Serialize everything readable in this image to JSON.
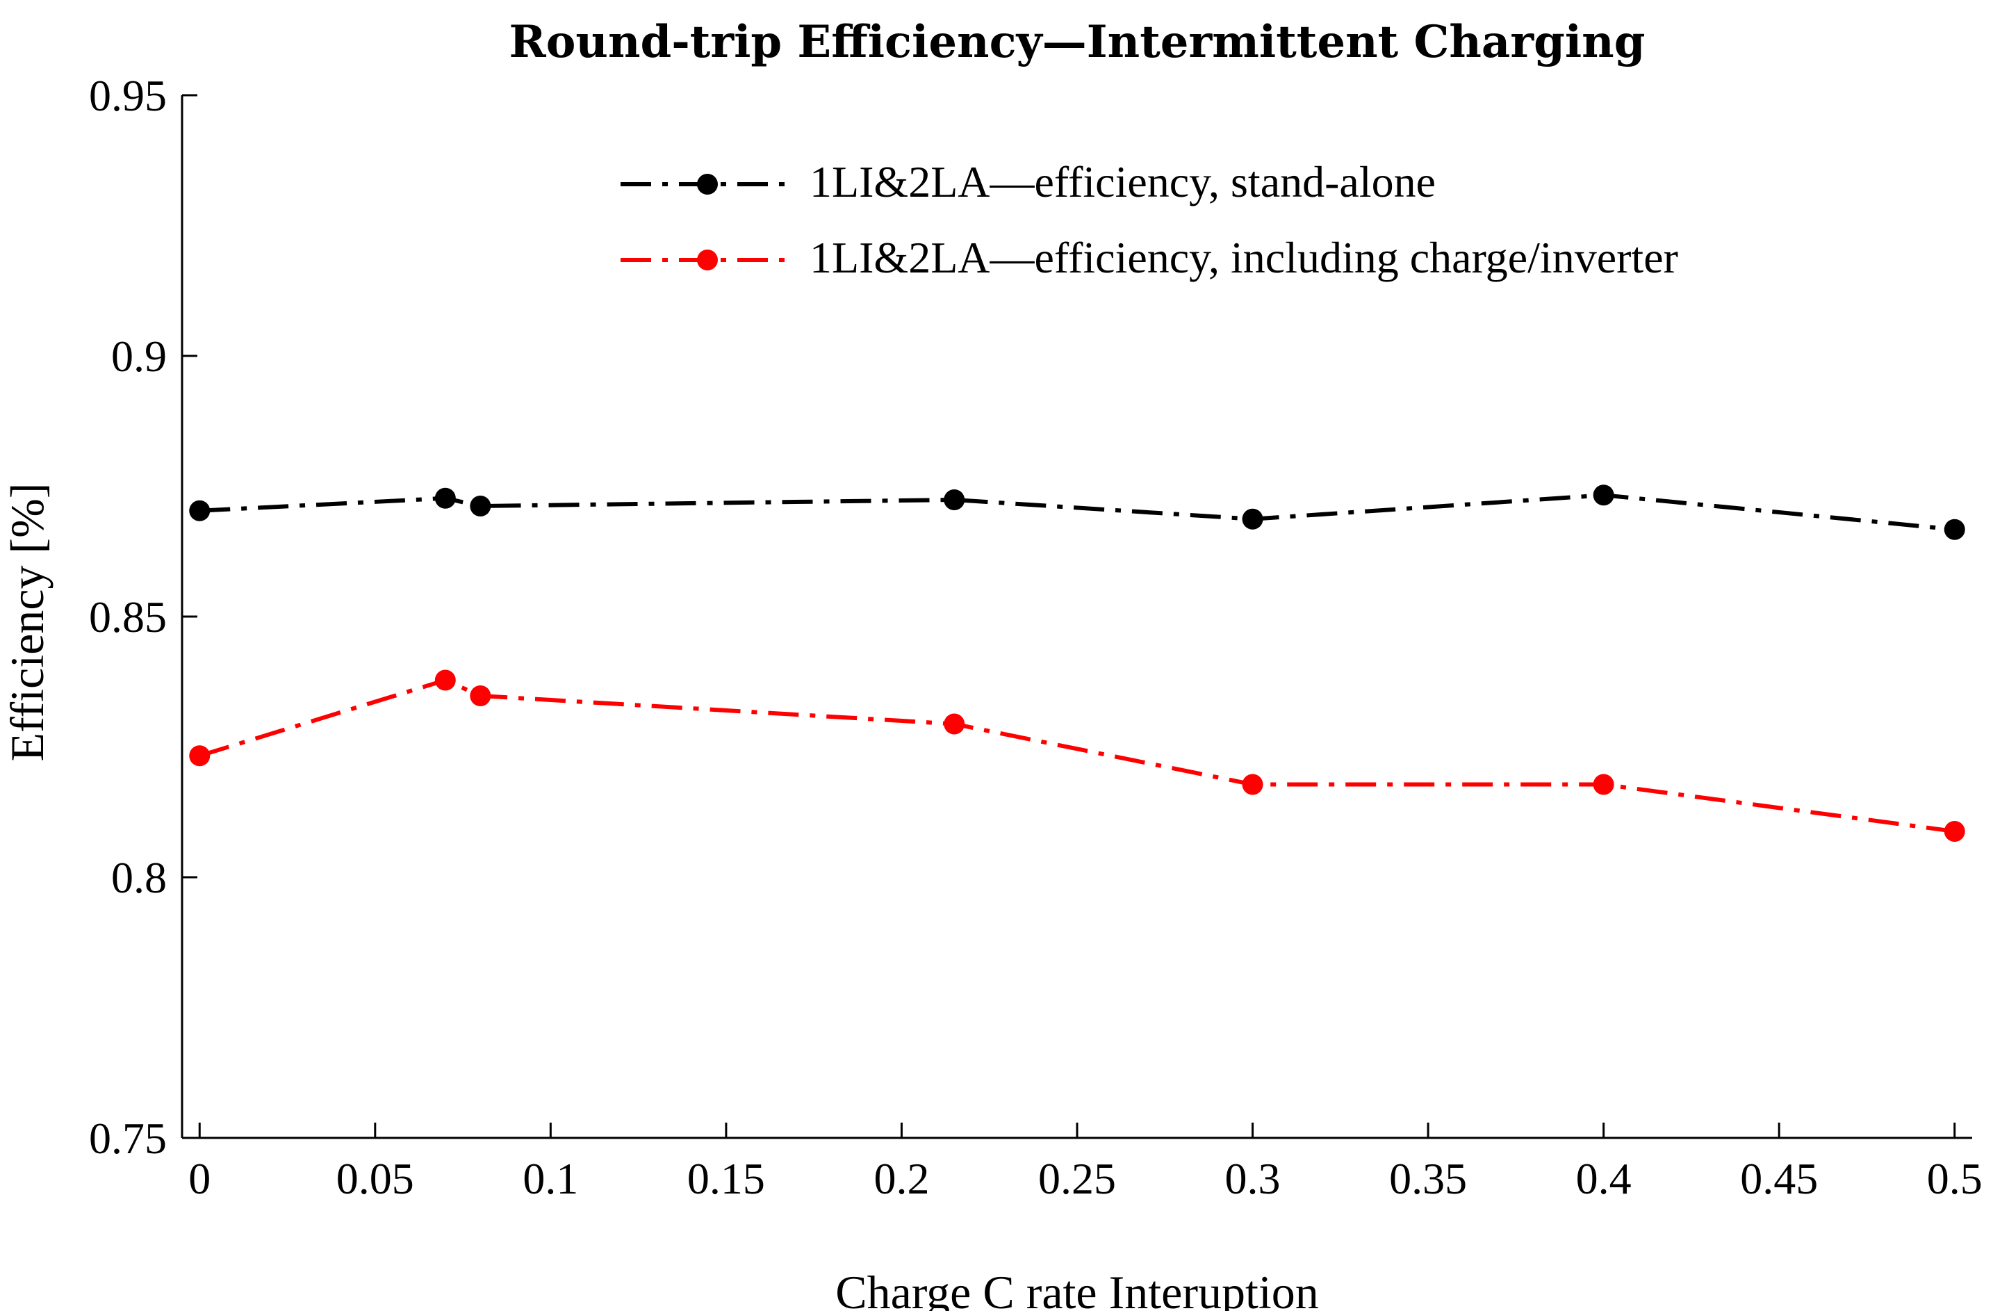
{
  "chart_data": {
    "type": "line",
    "title": "Round-trip Efficiency—Intermittent Charging",
    "xlabel": "Charge C rate Interuption",
    "ylabel": "Efficiency [%]",
    "xlim": [
      -0.005,
      0.505
    ],
    "ylim": [
      0.75,
      0.95
    ],
    "x_ticks": [
      0,
      0.05,
      0.1,
      0.15,
      0.2,
      0.25,
      0.3,
      0.35,
      0.4,
      0.45,
      0.5
    ],
    "x_tick_labels": [
      "0",
      "0.05",
      "0.1",
      "0.15",
      "0.2",
      "0.25",
      "0.3",
      "0.35",
      "0.4",
      "0.45",
      "0.5"
    ],
    "y_ticks": [
      0.75,
      0.8,
      0.85,
      0.9,
      0.95
    ],
    "y_tick_labels": [
      "0.75",
      "0.8",
      "0.85",
      "0.9",
      "0.95"
    ],
    "grid": false,
    "legend_position": "top-right",
    "series": [
      {
        "name": "1LI&2LA—efficiency, stand-alone",
        "color": "#000000",
        "line_style": "dash-dot",
        "marker": "circle",
        "x": [
          0,
          0.07,
          0.08,
          0.215,
          0.3,
          0.4,
          0.5
        ],
        "y": [
          0.8703,
          0.8727,
          0.8712,
          0.8724,
          0.8687,
          0.8733,
          0.8667
        ]
      },
      {
        "name": "1LI&2LA—efficiency, including charge/inverter",
        "color": "#ff0000",
        "line_style": "dash-dot",
        "marker": "circle",
        "x": [
          0,
          0.07,
          0.08,
          0.215,
          0.3,
          0.4,
          0.5
        ],
        "y": [
          0.8233,
          0.8378,
          0.8348,
          0.8294,
          0.8178,
          0.8178,
          0.8088
        ]
      }
    ]
  }
}
